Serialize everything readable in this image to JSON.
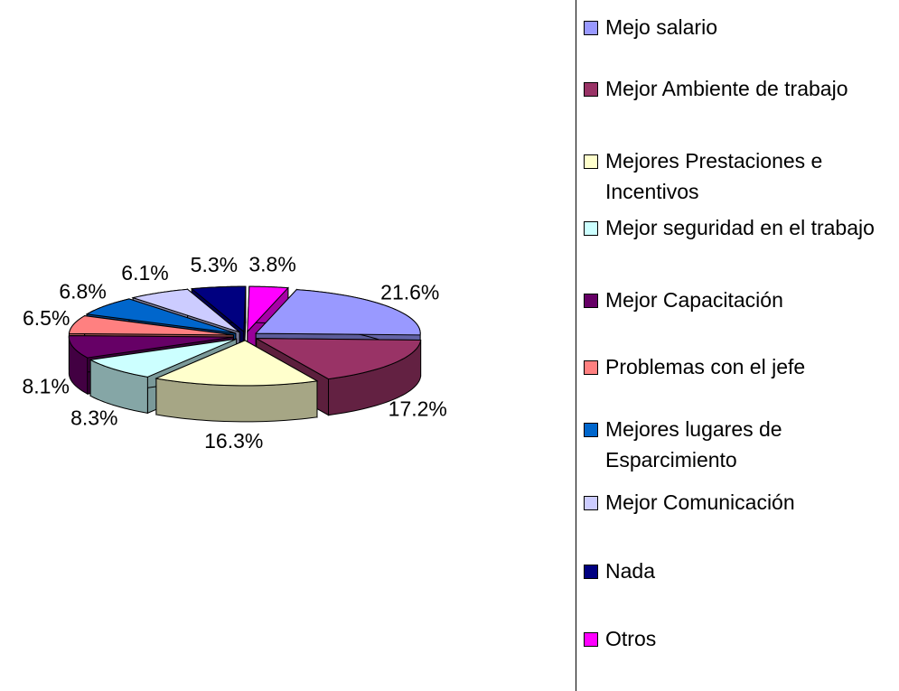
{
  "chart_data": {
    "type": "pie",
    "categories": [
      "Mejo salario",
      "Mejor Ambiente de trabajo",
      "Mejores Prestaciones e Incentivos",
      "Mejor seguridad en el trabajo",
      "Mejor Capacitación",
      "Problemas con el jefe",
      "Mejores lugares de Esparcimiento",
      "Mejor Comunicación",
      "Nada",
      "Otros"
    ],
    "values": [
      21.6,
      17.2,
      16.3,
      8.3,
      8.1,
      6.5,
      6.8,
      6.1,
      5.3,
      3.8
    ],
    "value_labels": [
      "21.6%",
      "17.2%",
      "16.3%",
      "8.3%",
      "8.1%",
      "6.5%",
      "6.8%",
      "6.1%",
      "5.3%",
      "3.8%"
    ],
    "colors": [
      "#9999ff",
      "#993366",
      "#ffffcc",
      "#ccffff",
      "#660066",
      "#ff8080",
      "#0066cc",
      "#ccccff",
      "#000080",
      "#ff00ff"
    ],
    "legend": "right"
  }
}
